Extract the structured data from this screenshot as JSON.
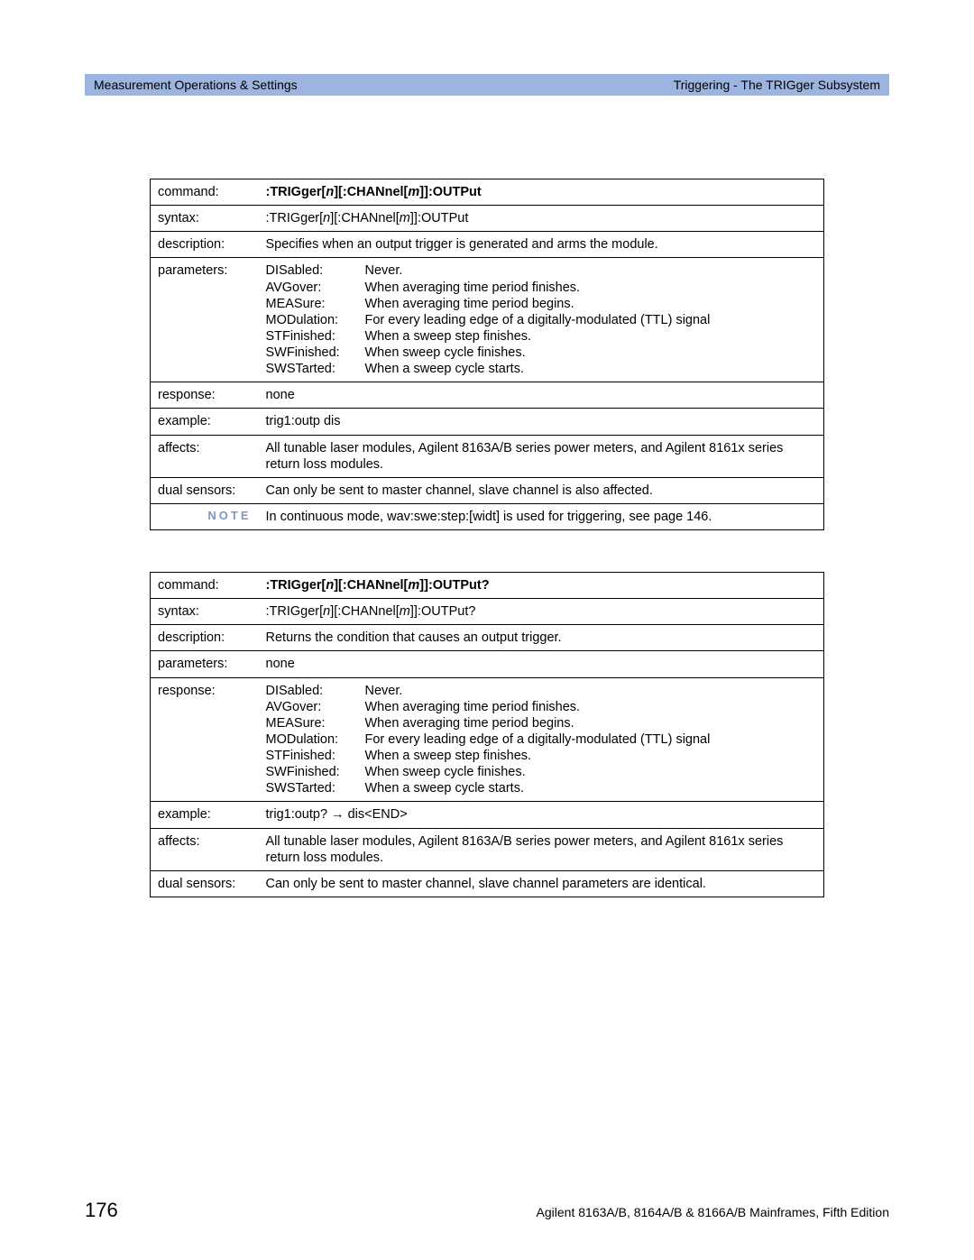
{
  "header": {
    "left": "Measurement Operations & Settings",
    "right": "Triggering - The TRIGger Subsystem"
  },
  "table1": {
    "labels": {
      "command": "command:",
      "syntax": "syntax:",
      "description": "description:",
      "parameters": "parameters:",
      "response": "response:",
      "example": "example:",
      "affects": "affects:",
      "dual_sensors": "dual sensors:",
      "note": "NOTE"
    },
    "command_prefix": ":TRIGger[",
    "command_n": "n",
    "command_mid": "][:CHANnel[",
    "command_m": "m",
    "command_suffix": "]]:OUTPut",
    "syntax_prefix": ":TRIGger[",
    "syntax_n": "n",
    "syntax_mid": "][:CHANnel[",
    "syntax_m": "m",
    "syntax_suffix": "]]:OUTPut",
    "description": "Specifies when an output trigger is generated and arms the module.",
    "params": [
      {
        "name": "DISabled:",
        "desc": "Never."
      },
      {
        "name": "AVGover:",
        "desc": "When averaging time period finishes."
      },
      {
        "name": "MEASure:",
        "desc": "When averaging time period begins."
      },
      {
        "name": "MODulation:",
        "desc": "For every leading edge of a digitally-modulated (TTL) signal"
      },
      {
        "name": "STFinished:",
        "desc": "When a sweep step finishes."
      },
      {
        "name": "SWFinished:",
        "desc": "When sweep cycle finishes."
      },
      {
        "name": "SWSTarted:",
        "desc": "When a sweep cycle starts."
      }
    ],
    "response": "none",
    "example": "trig1:outp dis",
    "affects": "All tunable laser modules, Agilent 8163A/B series power meters, and Agilent 8161x series return loss modules.",
    "dual_sensors": "Can only be sent to master channel, slave channel is also affected.",
    "note": "In continuous mode, wav:swe:step:[widt] is used for triggering, see page 146."
  },
  "table2": {
    "labels": {
      "command": "command:",
      "syntax": "syntax:",
      "description": "description:",
      "parameters": "parameters:",
      "response": "response:",
      "example": "example:",
      "affects": "affects:",
      "dual_sensors": "dual sensors:"
    },
    "command_prefix": ":TRIGger[",
    "command_n": "n",
    "command_mid": "][:CHANnel[",
    "command_m": "m",
    "command_suffix": "]]:OUTPut?",
    "syntax_prefix": ":TRIGger[",
    "syntax_n": "n",
    "syntax_mid": "][:CHANnel[",
    "syntax_m": "m",
    "syntax_suffix": "]]:OUTPut?",
    "description": "Returns the condition that causes an output trigger.",
    "parameters": "none",
    "response_params": [
      {
        "name": "DISabled:",
        "desc": "Never."
      },
      {
        "name": "AVGover:",
        "desc": "When averaging time period finishes."
      },
      {
        "name": "MEASure:",
        "desc": "When averaging time period begins."
      },
      {
        "name": "MODulation:",
        "desc": "For every leading edge of a digitally-modulated (TTL) signal"
      },
      {
        "name": "STFinished:",
        "desc": "When a sweep step finishes."
      },
      {
        "name": "SWFinished:",
        "desc": "When sweep cycle finishes."
      },
      {
        "name": "SWSTarted:",
        "desc": "When a sweep cycle starts."
      }
    ],
    "example": "trig1:outp? → dis<END>",
    "affects": "All tunable laser modules, Agilent 8163A/B series power meters, and Agilent 8161x series return loss modules.",
    "dual_sensors": "Can only be sent to master channel, slave channel parameters are identical."
  },
  "footer": {
    "page": "176",
    "text": "Agilent 8163A/B, 8164A/B & 8166A/B Mainframes, Fifth Edition"
  }
}
